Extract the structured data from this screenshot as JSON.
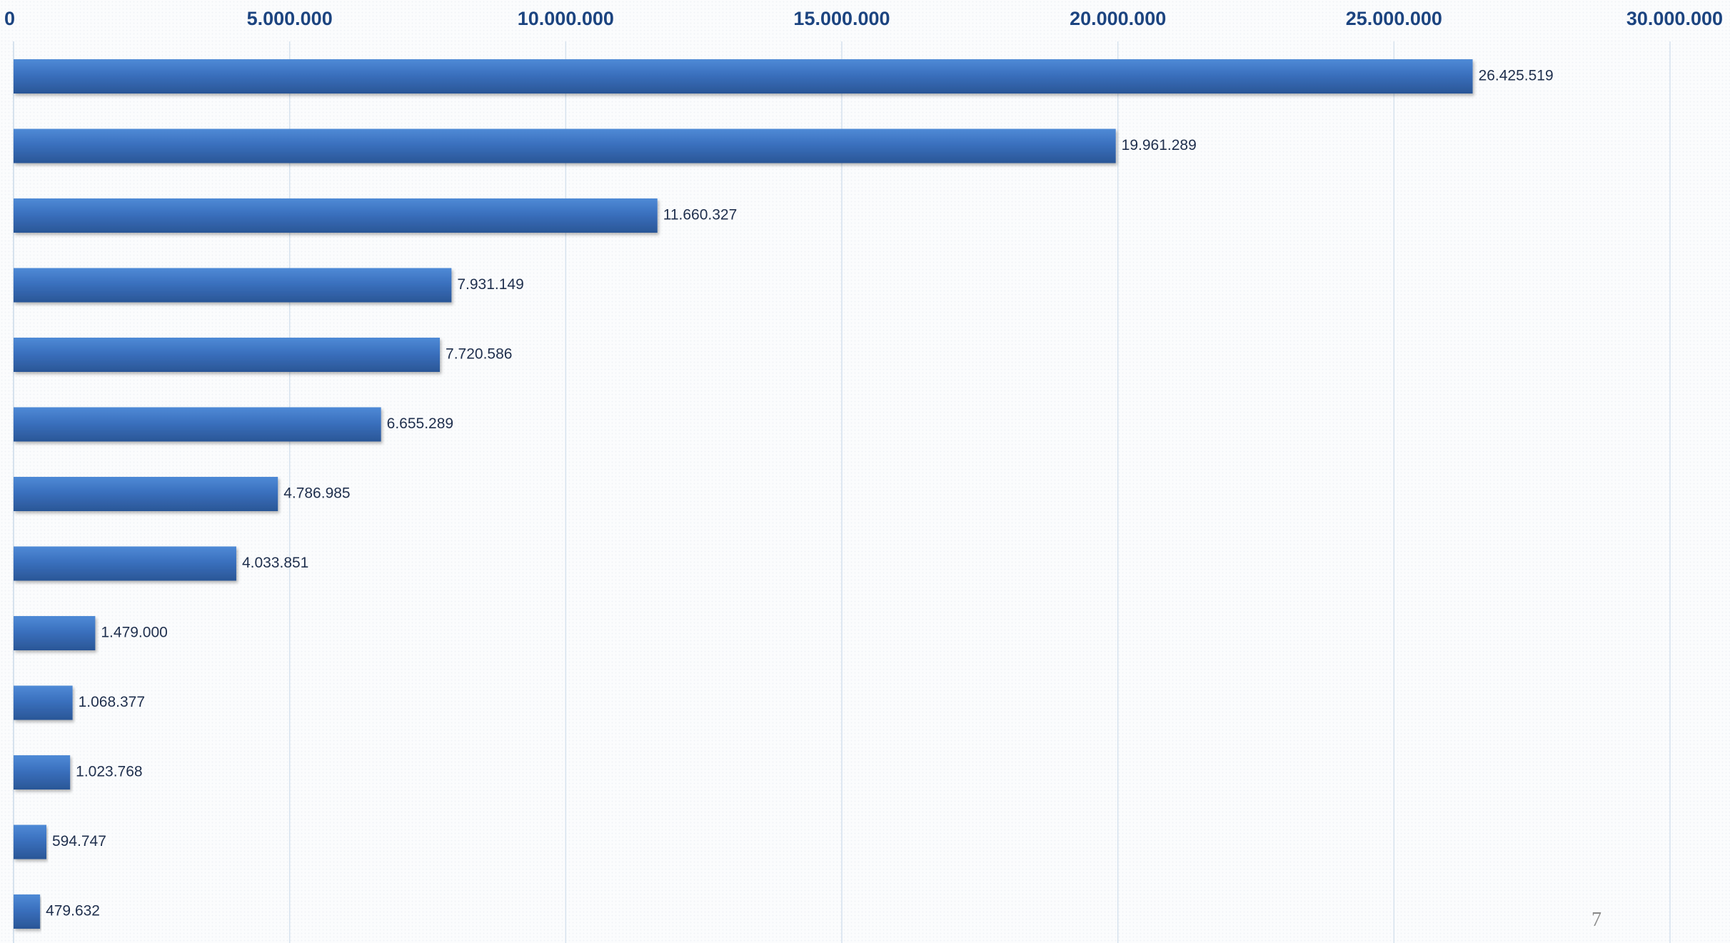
{
  "page": {
    "number": "7"
  },
  "colors": {
    "bar": "#3a70be",
    "bar_top": "#4f8ad6",
    "bar_bottom": "#2a5696",
    "gridline": "#d6e2ee",
    "tick_label": "#1c4480",
    "value_label": "#1f2f4d"
  },
  "chart_data": {
    "type": "bar",
    "orientation": "horizontal",
    "title": "",
    "xlabel": "",
    "ylabel": "",
    "xlim": [
      0,
      30000000
    ],
    "x_ticks": [
      0,
      5000000,
      10000000,
      15000000,
      20000000,
      25000000,
      30000000
    ],
    "x_tick_labels": [
      "0",
      "5.000.000",
      "10.000.000",
      "15.000.000",
      "20.000.000",
      "25.000.000",
      "30.000.000"
    ],
    "axis_position": "top",
    "grid": "vertical",
    "legend": "none",
    "values": [
      26425519,
      19961289,
      11660327,
      7931149,
      7720586,
      6655289,
      4786985,
      4033851,
      1479000,
      1068377,
      1023768,
      594747,
      479632
    ],
    "value_labels": [
      "26.425.519",
      "19.961.289",
      "11.660.327",
      "7.931.149",
      "7.720.586",
      "6.655.289",
      "4.786.985",
      "4.033.851",
      "1.479.000",
      "1.068.377",
      "1.023.768",
      "594.747",
      "479.632"
    ]
  }
}
